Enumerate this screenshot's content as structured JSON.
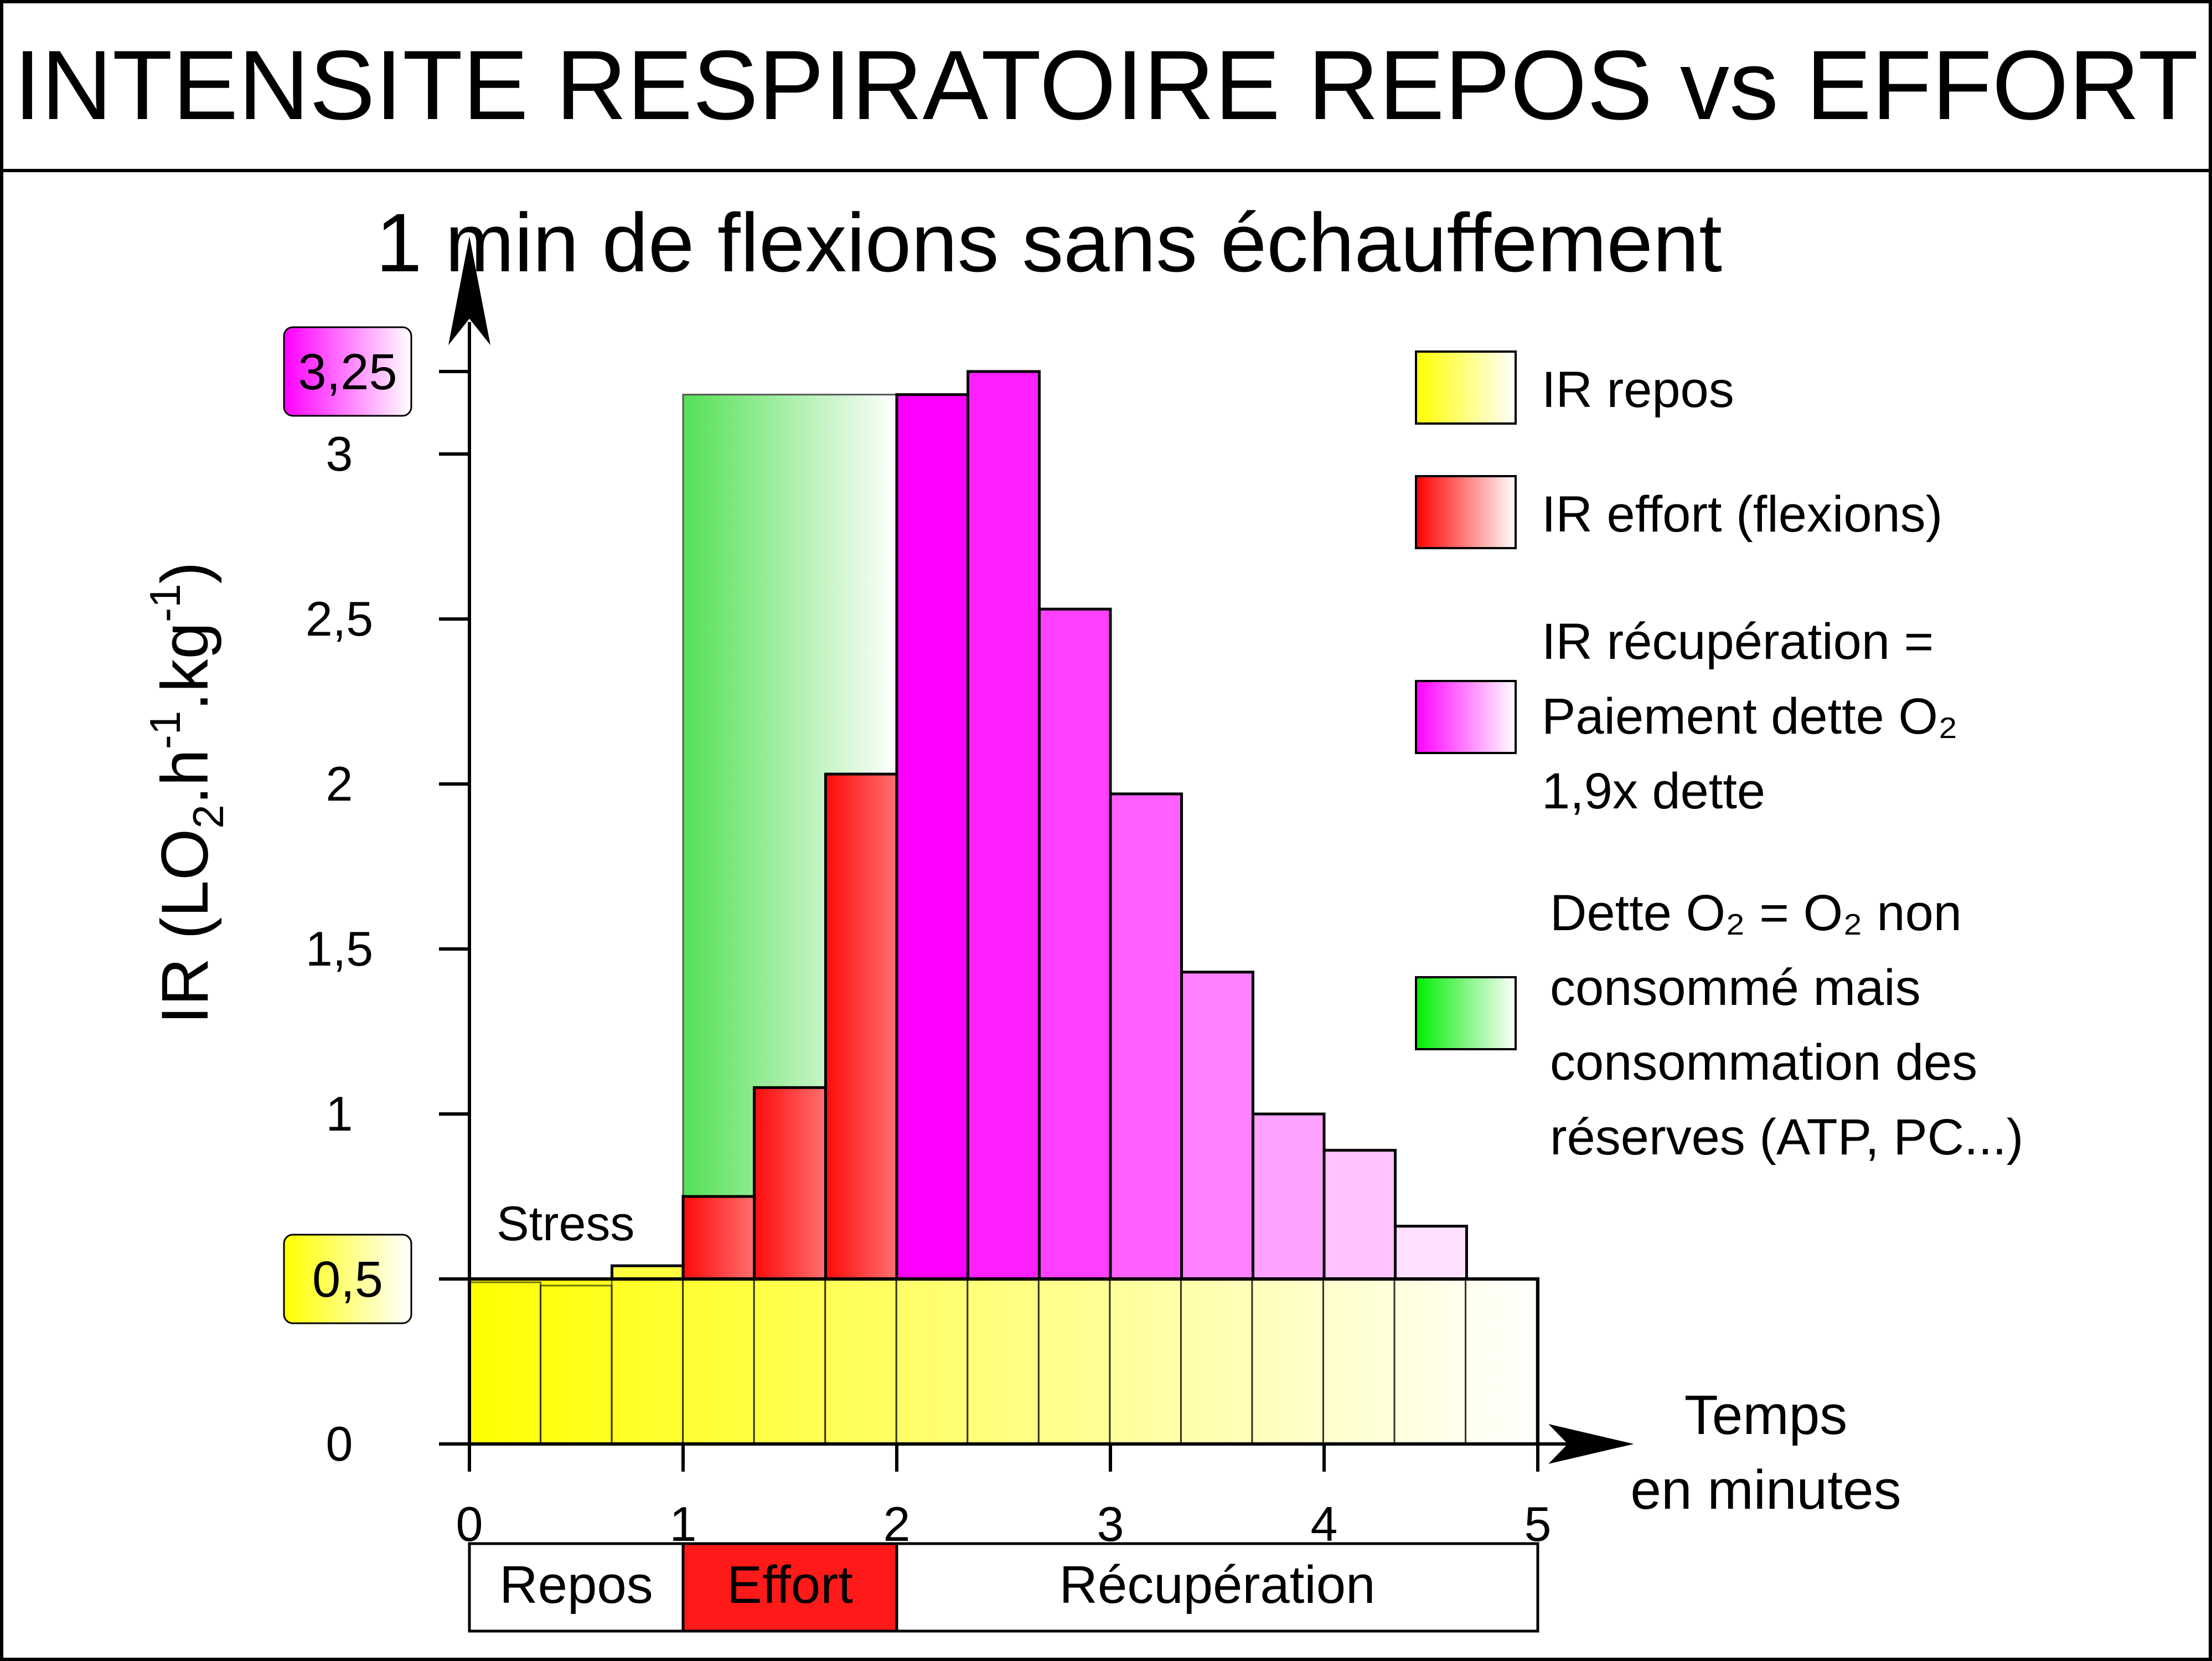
{
  "header": {
    "title": "INTENSITE RESPIRATOIRE REPOS vs EFFORT"
  },
  "chart_data": {
    "type": "bar",
    "title": "1 min de flexions sans échauffement",
    "ylabel_main": "IR (LO",
    "ylabel_sub2": "2",
    "ylabel_mid": ".h",
    "ylabel_sup1": "-1",
    "ylabel_mid2": ".kg",
    "ylabel_sup2": "-1",
    "ylabel_end": ")",
    "xlabel_line1": "Temps",
    "xlabel_line2": "en minutes",
    "xlim": [
      0,
      5
    ],
    "ylim": [
      0,
      3.25
    ],
    "x_ticks": [
      0,
      1,
      2,
      3,
      4,
      5
    ],
    "x_tick_labels": [
      "0",
      "1",
      "2",
      "3",
      "4",
      "5"
    ],
    "y_ticks": [
      0,
      0.5,
      1,
      1.5,
      2,
      2.5,
      3,
      3.25
    ],
    "y_tick_labels": [
      "0",
      "",
      "1",
      "1,5",
      "2",
      "2,5",
      "3",
      ""
    ],
    "highlight_labels": {
      "low": "0,5",
      "high": "3,25"
    },
    "bin_width": 0.333,
    "rest_bins": [
      0.49,
      0.48,
      0.5,
      0.5,
      0.5,
      0.5,
      0.5,
      0.5,
      0.5,
      0.5,
      0.5,
      0.5,
      0.5,
      0.5,
      0.5
    ],
    "stress_bins": [
      {
        "x0": 0.333,
        "x1": 0.667,
        "value": 0.5
      },
      {
        "x0": 0.667,
        "x1": 1.0,
        "value": 0.54
      }
    ],
    "stress_label": "Stress",
    "effort_bins": [
      {
        "x0": 1.0,
        "x1": 1.333,
        "value": 0.75
      },
      {
        "x0": 1.333,
        "x1": 1.667,
        "value": 1.08
      },
      {
        "x0": 1.667,
        "x1": 2.0,
        "value": 2.03
      }
    ],
    "debt_region": {
      "x0": 1.0,
      "x1": 2.0,
      "value": 3.18
    },
    "recovery_bins": [
      {
        "x0": 2.0,
        "x1": 2.333,
        "value": 3.18
      },
      {
        "x0": 2.333,
        "x1": 2.667,
        "value": 3.25
      },
      {
        "x0": 2.667,
        "x1": 3.0,
        "value": 2.53
      },
      {
        "x0": 3.0,
        "x1": 3.333,
        "value": 1.97
      },
      {
        "x0": 3.333,
        "x1": 3.667,
        "value": 1.43
      },
      {
        "x0": 3.667,
        "x1": 4.0,
        "value": 1.0
      },
      {
        "x0": 4.0,
        "x1": 4.333,
        "value": 0.89
      },
      {
        "x0": 4.333,
        "x1": 4.667,
        "value": 0.66
      }
    ],
    "phases": [
      {
        "label": "Repos",
        "x0": 0,
        "x1": 1,
        "color": "#ffffff"
      },
      {
        "label": "Effort",
        "x0": 1,
        "x1": 2,
        "color": "#ff1a1a"
      },
      {
        "label": "Récupération",
        "x0": 2,
        "x1": 5,
        "color": "#ffffff"
      }
    ],
    "legend": [
      {
        "lines": [
          "IR repos"
        ],
        "color": "#ffff00"
      },
      {
        "lines": [
          "IR effort (flexions)"
        ],
        "color": "#ff0000"
      },
      {
        "lines": [
          "IR récupération =",
          "Paiement dette O₂",
          "1,9x dette"
        ],
        "color": "#ff00ff"
      },
      {
        "lines": [
          "Dette O₂ = O₂ non",
          "consommé mais",
          "consommation des",
          "réserves (ATP, PC...)"
        ],
        "color": "#00dd00"
      }
    ],
    "colors": {
      "rest": "#ffff00",
      "effort": "#ff1a1a",
      "recovery": "#ff00ff",
      "debt": "#2ee82e"
    }
  }
}
